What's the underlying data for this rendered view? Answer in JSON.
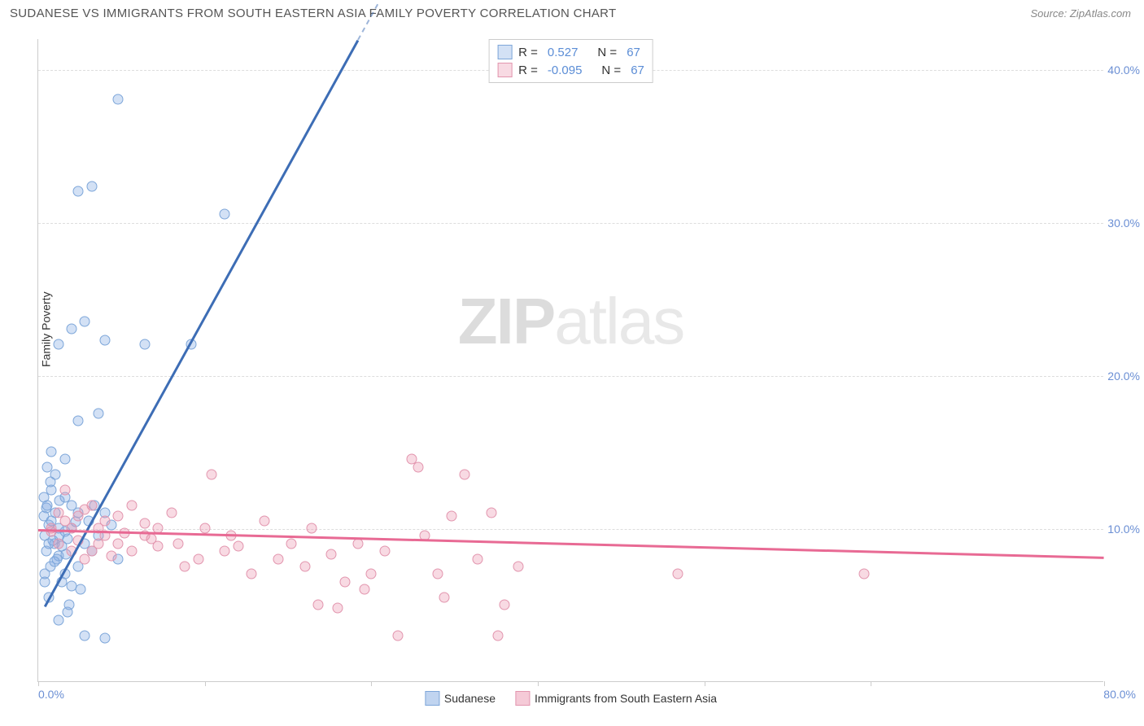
{
  "header": {
    "title": "SUDANESE VS IMMIGRANTS FROM SOUTH EASTERN ASIA FAMILY POVERTY CORRELATION CHART",
    "source": "Source: ZipAtlas.com"
  },
  "chart": {
    "type": "scatter",
    "ylabel": "Family Poverty",
    "watermark": {
      "part1": "ZIP",
      "part2": "atlas"
    },
    "xlim": [
      0,
      80
    ],
    "ylim": [
      0,
      42
    ],
    "xticks": [
      {
        "value": 0,
        "label": "0.0%"
      },
      {
        "value": 12.5,
        "label": ""
      },
      {
        "value": 25,
        "label": ""
      },
      {
        "value": 37.5,
        "label": ""
      },
      {
        "value": 50,
        "label": ""
      },
      {
        "value": 62.5,
        "label": ""
      },
      {
        "value": 80,
        "label": "80.0%"
      }
    ],
    "yticks": [
      {
        "value": 10,
        "label": "10.0%"
      },
      {
        "value": 20,
        "label": "20.0%"
      },
      {
        "value": 30,
        "label": "30.0%"
      },
      {
        "value": 40,
        "label": "40.0%"
      }
    ],
    "grid_color": "#dddddd",
    "background_color": "#ffffff",
    "axis_color": "#cccccc",
    "tick_label_color": "#6b8fd4",
    "series": [
      {
        "name": "Sudanese",
        "color_fill": "rgba(130, 170, 225, 0.35)",
        "color_stroke": "#7da6d9",
        "marker_size": 13,
        "r_value": "0.527",
        "n_value": "67",
        "trend": {
          "x1": 0.5,
          "y1": 5,
          "x2": 24,
          "y2": 42,
          "color": "#3d6db5",
          "width": 2.5,
          "dashed_extend": true
        },
        "points": [
          [
            0.5,
            9.5
          ],
          [
            0.8,
            10.2
          ],
          [
            1.2,
            9.0
          ],
          [
            0.6,
            11.3
          ],
          [
            1.5,
            8.2
          ],
          [
            2.0,
            9.8
          ],
          [
            1.0,
            12.5
          ],
          [
            2.5,
            10.0
          ],
          [
            1.3,
            13.5
          ],
          [
            0.7,
            14.0
          ],
          [
            3.0,
            11.0
          ],
          [
            0.9,
            7.5
          ],
          [
            1.8,
            8.8
          ],
          [
            2.2,
            9.3
          ],
          [
            0.4,
            10.8
          ],
          [
            1.6,
            11.8
          ],
          [
            2.8,
            10.4
          ],
          [
            1.1,
            9.2
          ],
          [
            3.5,
            9.0
          ],
          [
            0.5,
            6.5
          ],
          [
            2.0,
            7.0
          ],
          [
            1.4,
            8.0
          ],
          [
            4.0,
            8.5
          ],
          [
            0.8,
            5.5
          ],
          [
            2.5,
            6.2
          ],
          [
            3.0,
            7.5
          ],
          [
            1.5,
            4.0
          ],
          [
            2.2,
            4.5
          ],
          [
            3.5,
            3.0
          ],
          [
            5.0,
            2.8
          ],
          [
            4.5,
            9.5
          ],
          [
            5.5,
            10.2
          ],
          [
            6.0,
            8.0
          ],
          [
            2.0,
            14.5
          ],
          [
            1.0,
            15.0
          ],
          [
            3.0,
            17.0
          ],
          [
            4.5,
            17.5
          ],
          [
            2.5,
            23.0
          ],
          [
            3.5,
            23.5
          ],
          [
            1.5,
            22.0
          ],
          [
            5.0,
            22.3
          ],
          [
            8.0,
            22.0
          ],
          [
            11.5,
            22.0
          ],
          [
            6.0,
            38.0
          ],
          [
            3.0,
            32.0
          ],
          [
            4.0,
            32.3
          ],
          [
            14.0,
            30.5
          ],
          [
            0.6,
            8.5
          ],
          [
            1.0,
            10.5
          ],
          [
            1.3,
            11.0
          ],
          [
            2.0,
            12.0
          ],
          [
            2.5,
            11.5
          ],
          [
            0.8,
            9.0
          ],
          [
            1.5,
            10.0
          ],
          [
            0.4,
            12.0
          ],
          [
            0.9,
            13.0
          ],
          [
            1.2,
            7.8
          ],
          [
            1.8,
            6.5
          ],
          [
            2.3,
            5.0
          ],
          [
            3.2,
            6.0
          ],
          [
            0.7,
            11.5
          ],
          [
            1.6,
            9.5
          ],
          [
            2.1,
            8.3
          ],
          [
            0.5,
            7.0
          ],
          [
            3.8,
            10.5
          ],
          [
            4.2,
            11.5
          ],
          [
            5.0,
            11.0
          ]
        ]
      },
      {
        "name": "Immigrants from South Eastern Asia",
        "color_fill": "rgba(235, 150, 175, 0.35)",
        "color_stroke": "#e295ae",
        "marker_size": 13,
        "r_value": "-0.095",
        "n_value": "67",
        "trend": {
          "x1": 0,
          "y1": 10,
          "x2": 80,
          "y2": 8.2,
          "color": "#e86a94",
          "width": 2.5
        },
        "points": [
          [
            1.0,
            9.8
          ],
          [
            2.0,
            10.5
          ],
          [
            3.0,
            9.2
          ],
          [
            1.5,
            11.0
          ],
          [
            2.5,
            10.0
          ],
          [
            4.0,
            8.5
          ],
          [
            5.0,
            9.5
          ],
          [
            3.5,
            11.2
          ],
          [
            6.0,
            10.8
          ],
          [
            4.5,
            9.0
          ],
          [
            7.0,
            11.5
          ],
          [
            5.5,
            8.2
          ],
          [
            8.0,
            10.3
          ],
          [
            6.5,
            9.7
          ],
          [
            9.0,
            8.8
          ],
          [
            10.0,
            11.0
          ],
          [
            8.5,
            9.3
          ],
          [
            11.0,
            7.5
          ],
          [
            12.0,
            8.0
          ],
          [
            10.5,
            9.0
          ],
          [
            13.0,
            13.5
          ],
          [
            14.0,
            8.5
          ],
          [
            12.5,
            10.0
          ],
          [
            15.0,
            8.8
          ],
          [
            16.0,
            7.0
          ],
          [
            14.5,
            9.5
          ],
          [
            17.0,
            10.5
          ],
          [
            18.0,
            8.0
          ],
          [
            19.0,
            9.0
          ],
          [
            20.0,
            7.5
          ],
          [
            21.0,
            5.0
          ],
          [
            22.0,
            8.3
          ],
          [
            20.5,
            10.0
          ],
          [
            23.0,
            6.5
          ],
          [
            24.0,
            9.0
          ],
          [
            22.5,
            4.8
          ],
          [
            25.0,
            7.0
          ],
          [
            26.0,
            8.5
          ],
          [
            24.5,
            6.0
          ],
          [
            27.0,
            3.0
          ],
          [
            28.0,
            14.5
          ],
          [
            29.0,
            9.5
          ],
          [
            30.0,
            7.0
          ],
          [
            28.5,
            14.0
          ],
          [
            31.0,
            10.8
          ],
          [
            32.0,
            13.5
          ],
          [
            30.5,
            5.5
          ],
          [
            33.0,
            8.0
          ],
          [
            34.0,
            11.0
          ],
          [
            35.0,
            5.0
          ],
          [
            36.0,
            7.5
          ],
          [
            34.5,
            3.0
          ],
          [
            48.0,
            7.0
          ],
          [
            62.0,
            7.0
          ],
          [
            2.0,
            12.5
          ],
          [
            1.5,
            9.0
          ],
          [
            3.0,
            10.8
          ],
          [
            4.0,
            11.5
          ],
          [
            1.0,
            10.0
          ],
          [
            2.5,
            8.5
          ],
          [
            5.0,
            10.5
          ],
          [
            6.0,
            9.0
          ],
          [
            3.5,
            8.0
          ],
          [
            4.5,
            10.0
          ],
          [
            7.0,
            8.5
          ],
          [
            8.0,
            9.5
          ],
          [
            9.0,
            10.0
          ]
        ]
      }
    ],
    "bottom_legend": [
      {
        "label": "Sudanese",
        "fill": "rgba(130,170,225,0.5)",
        "stroke": "#7da6d9"
      },
      {
        "label": "Immigrants from South Eastern Asia",
        "fill": "rgba(235,150,175,0.5)",
        "stroke": "#e295ae"
      }
    ]
  }
}
